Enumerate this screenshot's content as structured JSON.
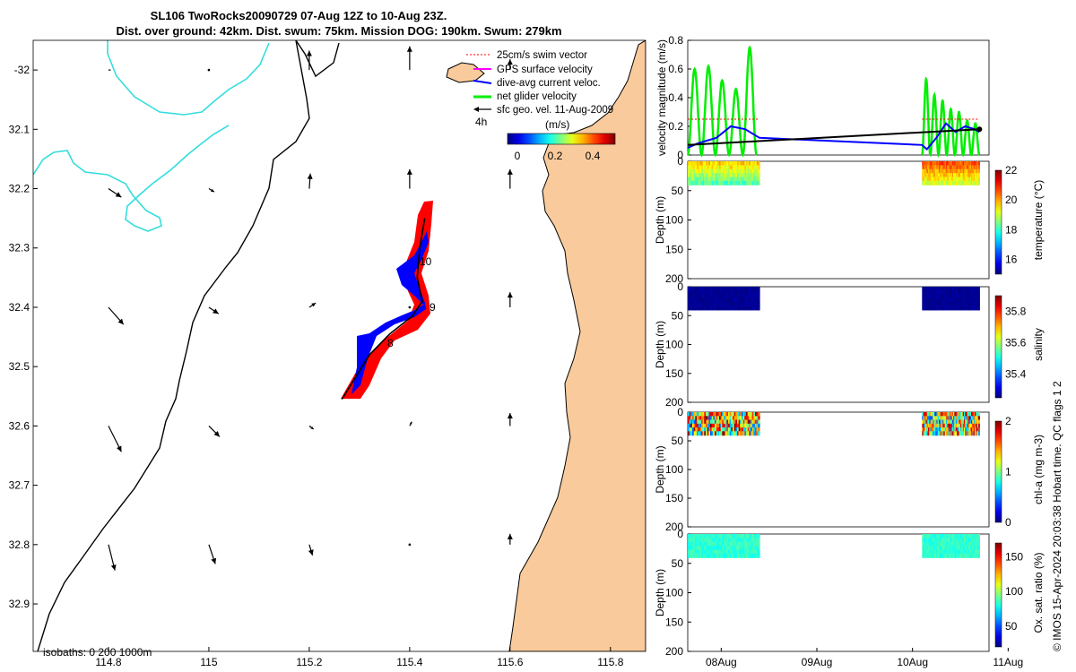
{
  "title": {
    "line1": "SL106 TwoRocks20090729 07-Aug 12Z to 10-Aug 23Z.",
    "line2": "Dist. over ground: 42km. Dist. swum: 75km. Mission DOG: 190km. Swum: 279km"
  },
  "credit": "© IMOS 15-Apr-2024 20:03:38 Hobart time. QC flags 1  2",
  "colors": {
    "land": "#f9cb9c",
    "coast": "#000000",
    "isobath200": "#000000",
    "isobath1000": "#33dddd",
    "track_red": "#ff0000",
    "track_blue": "#0000ff",
    "net_green": "#00ee00"
  },
  "chart_data": [
    {
      "type": "map",
      "name": "glider track map",
      "xlim": [
        114.65,
        115.87
      ],
      "ylim_neg_lat": [
        31.95,
        32.98
      ],
      "x_ticks": [
        "114.8",
        "115",
        "115.2",
        "115.4",
        "115.6",
        "115.8"
      ],
      "y_ticks": [
        "-32",
        "32.1",
        "32.2",
        "32.3",
        "32.4",
        "32.5",
        "32.6",
        "32.7",
        "32.8",
        "32.9"
      ],
      "legend": {
        "items": [
          "25cm/s swim vector",
          "GPS surface velocity",
          "dive-avg current veloc.",
          "net glider velocity",
          "sfc geo. vel. 11-Aug-2009"
        ],
        "scale_label": "4h",
        "colorbar_label": "(m/s)",
        "colorbar_ticks": [
          "0",
          "0.2",
          "0.4"
        ]
      },
      "isobaths_label": "isobaths: 0   200  1000m",
      "day_labels": [
        "8",
        "9",
        "10"
      ],
      "track": [
        {
          "lon": 115.265,
          "lat": 32.555
        },
        {
          "lon": 115.32,
          "lat": 32.48
        },
        {
          "lon": 115.36,
          "lat": 32.445
        },
        {
          "lon": 115.405,
          "lat": 32.415
        },
        {
          "lon": 115.425,
          "lat": 32.39
        },
        {
          "lon": 115.415,
          "lat": 32.35
        },
        {
          "lon": 115.42,
          "lat": 32.3
        },
        {
          "lon": 115.43,
          "lat": 32.25
        }
      ],
      "geo_vectors": [
        {
          "lon": 114.8,
          "lat": 32.0,
          "u": 0.02,
          "v": 0.0
        },
        {
          "lon": 115.0,
          "lat": 32.0,
          "u": 0.01,
          "v": 0.0
        },
        {
          "lon": 115.2,
          "lat": 32.0,
          "u": 0.0,
          "v": 0.18
        },
        {
          "lon": 115.4,
          "lat": 32.0,
          "u": 0.0,
          "v": 0.22
        },
        {
          "lon": 115.6,
          "lat": 32.0,
          "u": 0.0,
          "v": 0.1
        },
        {
          "lon": 114.8,
          "lat": 32.2,
          "u": 0.12,
          "v": -0.08
        },
        {
          "lon": 115.0,
          "lat": 32.2,
          "u": 0.05,
          "v": -0.03
        },
        {
          "lon": 115.2,
          "lat": 32.2,
          "u": 0.01,
          "v": 0.14
        },
        {
          "lon": 115.4,
          "lat": 32.2,
          "u": 0.0,
          "v": 0.18
        },
        {
          "lon": 115.6,
          "lat": 32.2,
          "u": 0.0,
          "v": 0.18
        },
        {
          "lon": 114.8,
          "lat": 32.4,
          "u": 0.14,
          "v": -0.16
        },
        {
          "lon": 115.0,
          "lat": 32.4,
          "u": 0.09,
          "v": -0.06
        },
        {
          "lon": 115.2,
          "lat": 32.4,
          "u": 0.06,
          "v": 0.04
        },
        {
          "lon": 115.4,
          "lat": 32.4,
          "u": 0.0,
          "v": 0.0
        },
        {
          "lon": 115.6,
          "lat": 32.4,
          "u": 0.0,
          "v": 0.14
        },
        {
          "lon": 114.8,
          "lat": 32.6,
          "u": 0.12,
          "v": -0.24
        },
        {
          "lon": 115.0,
          "lat": 32.6,
          "u": 0.1,
          "v": -0.1
        },
        {
          "lon": 115.2,
          "lat": 32.6,
          "u": 0.04,
          "v": -0.03
        },
        {
          "lon": 115.4,
          "lat": 32.6,
          "u": 0.02,
          "v": 0.04
        },
        {
          "lon": 115.6,
          "lat": 32.6,
          "u": 0.0,
          "v": 0.12
        },
        {
          "lon": 114.8,
          "lat": 32.8,
          "u": 0.06,
          "v": -0.24
        },
        {
          "lon": 115.0,
          "lat": 32.8,
          "u": 0.06,
          "v": -0.18
        },
        {
          "lon": 115.2,
          "lat": 32.8,
          "u": 0.03,
          "v": -0.1
        },
        {
          "lon": 115.4,
          "lat": 32.8,
          "u": 0.01,
          "v": 0.0
        },
        {
          "lon": 115.6,
          "lat": 32.8,
          "u": 0.0,
          "v": 0.1
        }
      ]
    },
    {
      "type": "line",
      "name": "velocity magnitude",
      "ylabel": "velocity magnitude (m/s)",
      "ylim": [
        0,
        0.8
      ],
      "y_ticks": [
        "0",
        "0.2",
        "0.4",
        "0.6",
        "0.8"
      ],
      "series": [
        {
          "name": "swim",
          "color": "#ff0000",
          "dash": true,
          "x": [
            0,
            0.75
          ],
          "y": [
            0.25,
            0.25
          ],
          "x2": [
            2.45,
            3.05
          ],
          "y2": [
            0.25,
            0.25
          ]
        },
        {
          "name": "dive-avg current",
          "color": "#0000ff",
          "x": [
            0,
            0.1,
            0.2,
            0.3,
            0.45,
            0.6,
            0.75,
            2.45,
            2.5,
            2.6,
            2.7,
            2.8,
            2.9,
            3.0,
            3.05
          ],
          "y": [
            0.05,
            0.08,
            0.1,
            0.12,
            0.2,
            0.18,
            0.12,
            0.07,
            0.04,
            0.12,
            0.22,
            0.16,
            0.2,
            0.18,
            0.16
          ]
        },
        {
          "name": "net glider",
          "color": "#000000",
          "x": [
            0,
            3.05
          ],
          "y": [
            0.07,
            0.18
          ]
        }
      ]
    },
    {
      "type": "heatmap",
      "name": "temperature",
      "ylabel": "Depth (m)",
      "cblabel": "temperature (°C)",
      "cbticks": [
        "16",
        "18",
        "20",
        "22"
      ],
      "cbrange": [
        15,
        22
      ]
    },
    {
      "type": "heatmap",
      "name": "salinity",
      "ylabel": "Depth (m)",
      "cblabel": "salinity",
      "cbticks": [
        "35.4",
        "35.6",
        "35.8"
      ],
      "cbrange": [
        35.25,
        35.9
      ]
    },
    {
      "type": "heatmap",
      "name": "chl-a",
      "ylabel": "Depth (m)",
      "cblabel": "chl-a (mg m-3)",
      "cbticks": [
        "0",
        "1",
        "2"
      ],
      "cbrange": [
        0,
        2
      ]
    },
    {
      "type": "heatmap",
      "name": "oxygen saturation",
      "ylabel": "Depth (m)",
      "cblabel": "Ox. sat. ratio (%)",
      "cbticks": [
        "50",
        "100",
        "150"
      ],
      "cbrange": [
        20,
        170
      ]
    }
  ],
  "time_axis": {
    "ticks": [
      "08Aug",
      "09Aug",
      "10Aug",
      "11Aug"
    ],
    "range_days": [
      0,
      3.15
    ]
  },
  "depth_axis": {
    "ticks": [
      "0",
      "50",
      "100",
      "150",
      "200"
    ],
    "range": [
      0,
      200
    ]
  }
}
